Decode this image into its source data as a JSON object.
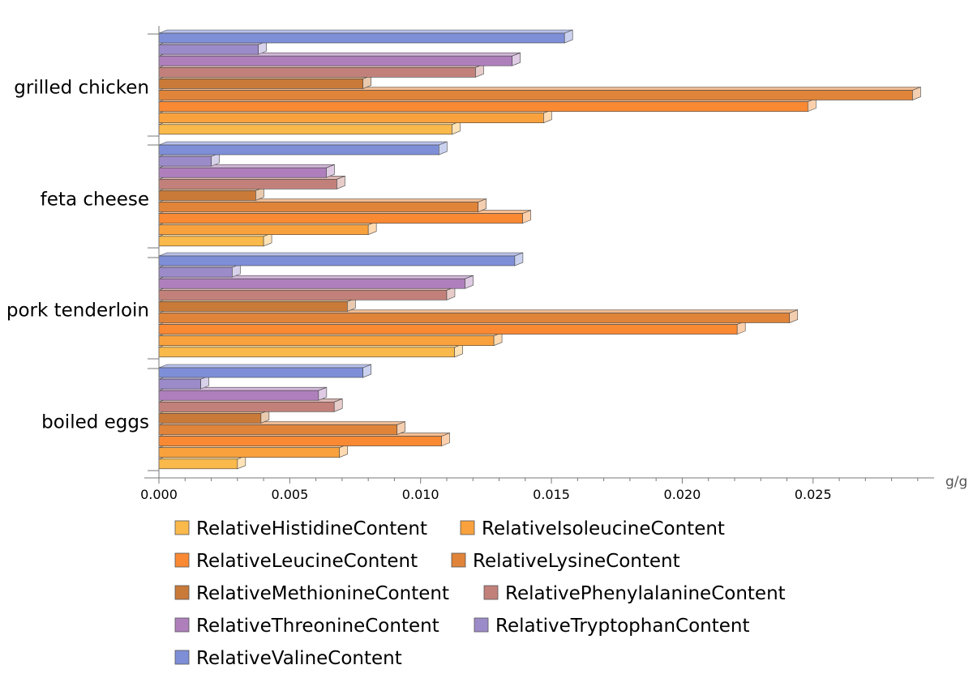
{
  "chart_data": {
    "type": "bar",
    "orientation": "horizontal",
    "style": "3d",
    "title": "",
    "xlabel": "g/g",
    "ylabel": "",
    "xlim": [
      0,
      0.0295
    ],
    "xticks": [
      "0.000",
      "0.005",
      "0.010",
      "0.015",
      "0.020",
      "0.025"
    ],
    "tick_values": [
      0,
      0.005,
      0.01,
      0.015,
      0.02,
      0.025
    ],
    "categories": [
      "grilled chicken",
      "feta cheese",
      "pork tenderloin",
      "boiled eggs"
    ],
    "series": [
      {
        "name": "RelativeHistidineContent",
        "color": "#F9B94B",
        "values": [
          0.0112,
          0.004,
          0.0113,
          0.003
        ]
      },
      {
        "name": "RelativeIsoleucineContent",
        "color": "#F9A23D",
        "values": [
          0.0147,
          0.008,
          0.0128,
          0.0069
        ]
      },
      {
        "name": "RelativeLeucineContent",
        "color": "#F98933",
        "values": [
          0.0248,
          0.0139,
          0.0221,
          0.0108
        ]
      },
      {
        "name": "RelativeLysineContent",
        "color": "#E0843A",
        "values": [
          0.0288,
          0.0122,
          0.0241,
          0.0091
        ]
      },
      {
        "name": "RelativeMethionineContent",
        "color": "#C97A38",
        "values": [
          0.0078,
          0.0037,
          0.0072,
          0.0039
        ]
      },
      {
        "name": "RelativePhenylalanineContent",
        "color": "#C2807A",
        "values": [
          0.0121,
          0.0068,
          0.011,
          0.0067
        ]
      },
      {
        "name": "RelativeThreonineContent",
        "color": "#AF7FBC",
        "values": [
          0.0135,
          0.0064,
          0.0117,
          0.0061
        ]
      },
      {
        "name": "RelativeTryptophanContent",
        "color": "#9C8BC9",
        "values": [
          0.0038,
          0.002,
          0.0028,
          0.0016
        ]
      },
      {
        "name": "RelativeValineContent",
        "color": "#7E8FD8",
        "values": [
          0.0155,
          0.0107,
          0.0136,
          0.0078
        ]
      }
    ]
  }
}
